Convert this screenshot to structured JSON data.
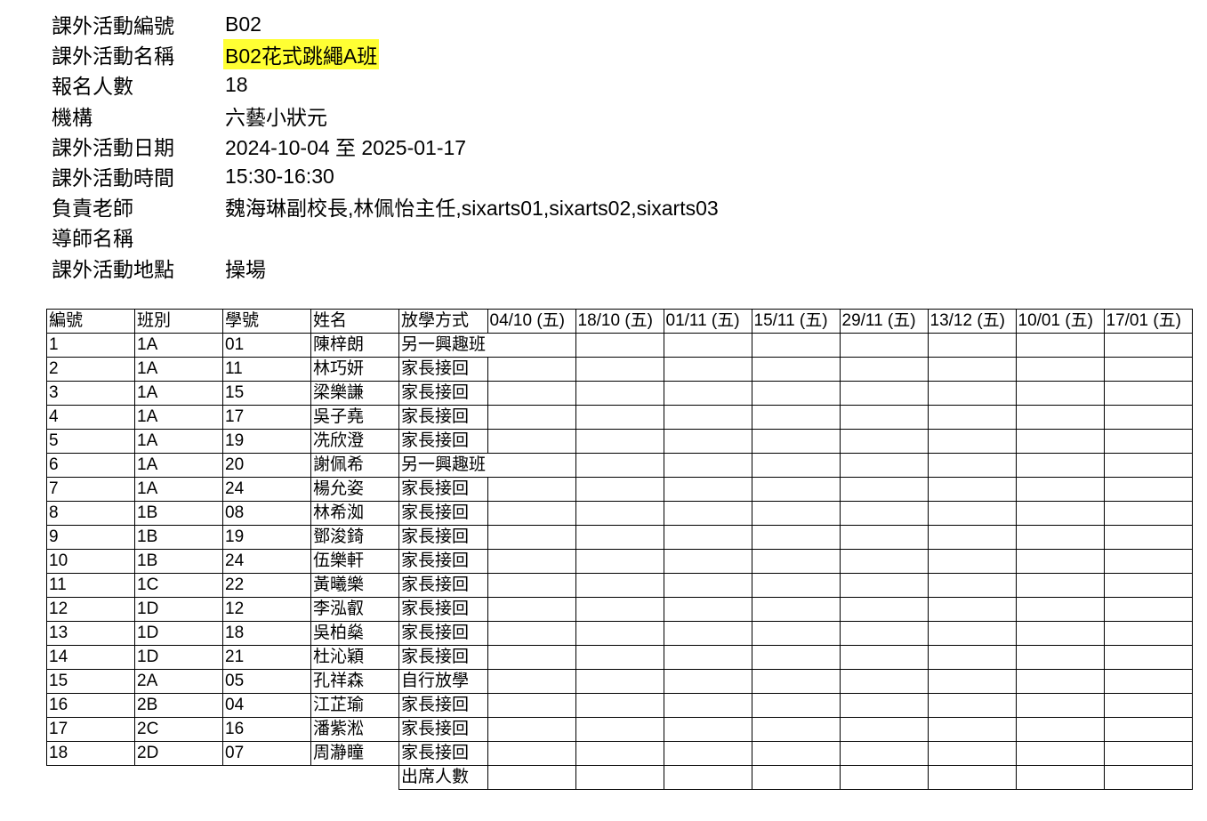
{
  "info": [
    {
      "label": "課外活動編號",
      "value": "B02"
    },
    {
      "label": "課外活動名稱",
      "value": "B02花式跳繩A班",
      "highlight": true
    },
    {
      "label": "報名人數",
      "value": "18"
    },
    {
      "label": "機構",
      "value": "六藝小狀元"
    },
    {
      "label": "課外活動日期",
      "value": "2024-10-04 至 2025-01-17"
    },
    {
      "label": "課外活動時間",
      "value": "15:30-16:30"
    },
    {
      "label": "負責老師",
      "value": "魏海琳副校長,林佩怡主任,sixarts01,sixarts02,sixarts03"
    },
    {
      "label": "導師名稱",
      "value": ""
    },
    {
      "label": "課外活動地點",
      "value": "操場"
    }
  ],
  "highlight_color": "#ffff33",
  "table": {
    "headers": [
      "編號",
      "班別",
      "學號",
      "姓名",
      "放學方式",
      "04/10 (五)",
      "18/10 (五)",
      "01/11 (五)",
      "15/11 (五)",
      "29/11 (五)",
      "13/12 (五)",
      "10/01 (五)",
      "17/01 (五)"
    ],
    "rows": [
      [
        "1",
        "1A",
        "01",
        "陳梓朗",
        "另一興趣班"
      ],
      [
        "2",
        "1A",
        "11",
        "林巧妍",
        "家長接回"
      ],
      [
        "3",
        "1A",
        "15",
        "梁樂謙",
        "家長接回"
      ],
      [
        "4",
        "1A",
        "17",
        "吳子堯",
        "家長接回"
      ],
      [
        "5",
        "1A",
        "19",
        "冼欣澄",
        "家長接回"
      ],
      [
        "6",
        "1A",
        "20",
        "謝佩希",
        "另一興趣班"
      ],
      [
        "7",
        "1A",
        "24",
        "楊允姿",
        "家長接回"
      ],
      [
        "8",
        "1B",
        "08",
        "林希洳",
        "家長接回"
      ],
      [
        "9",
        "1B",
        "19",
        "鄧浚錡",
        "家長接回"
      ],
      [
        "10",
        "1B",
        "24",
        "伍樂軒",
        "家長接回"
      ],
      [
        "11",
        "1C",
        "22",
        "黃曦樂",
        "家長接回"
      ],
      [
        "12",
        "1D",
        "12",
        "李泓叡",
        "家長接回"
      ],
      [
        "13",
        "1D",
        "18",
        "吳柏燊",
        "家長接回"
      ],
      [
        "14",
        "1D",
        "21",
        "杜沁穎",
        "家長接回"
      ],
      [
        "15",
        "2A",
        "05",
        "孔祥森",
        "自行放學"
      ],
      [
        "16",
        "2B",
        "04",
        "江芷瑜",
        "家長接回"
      ],
      [
        "17",
        "2C",
        "16",
        "潘紫淞",
        "家長接回"
      ],
      [
        "18",
        "2D",
        "07",
        "周瀞瞳",
        "家長接回"
      ]
    ],
    "footer_label": "出席人數"
  }
}
